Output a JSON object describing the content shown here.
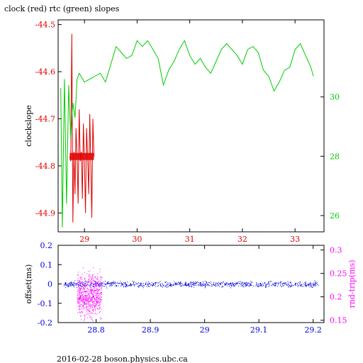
{
  "title": "clock (red) rtc (green) slopes",
  "footer": "2016-02-28 boson.physics.ubc.ca",
  "colors": {
    "red": "#e00000",
    "green": "#00cc00",
    "blue": "#0000dd",
    "magenta": "#ff00ff",
    "axis": "#000000"
  },
  "chart_data": [
    {
      "type": "line",
      "ylabel": "clockslope",
      "xlim": [
        28.5,
        33.55
      ],
      "ylim": [
        -44.94,
        -44.49
      ],
      "x_ticks": [
        "29",
        "30",
        "31",
        "32",
        "33"
      ],
      "y_ticks_left": [
        "-44.5",
        "-44.6",
        "-44.7",
        "-44.8",
        "-44.9"
      ],
      "y_ticks_right": [
        "30",
        "28",
        "26"
      ],
      "y2lim": [
        25.45,
        32.6
      ],
      "grid": false,
      "series": [
        {
          "axis": "left",
          "color": "red",
          "x": [
            28.72,
            28.74,
            28.76,
            28.78,
            28.8,
            28.82,
            28.84,
            28.86,
            28.88,
            28.9,
            28.92,
            28.94,
            28.96,
            28.98,
            29.0,
            29.02,
            29.04,
            29.06,
            29.08,
            29.1,
            29.12,
            29.14,
            29.16,
            29.18
          ],
          "y": [
            -44.78,
            -44.79,
            -44.52,
            -44.92,
            -44.77,
            -44.86,
            -44.72,
            -44.78,
            -44.88,
            -44.68,
            -44.79,
            -44.77,
            -44.87,
            -44.71,
            -44.79,
            -44.9,
            -44.72,
            -44.78,
            -44.86,
            -44.69,
            -44.79,
            -44.91,
            -44.7,
            -44.78
          ]
        },
        {
          "axis": "right",
          "color": "green",
          "x": [
            28.55,
            28.58,
            28.62,
            28.66,
            28.7,
            28.74,
            28.78,
            28.82,
            28.86,
            28.9,
            29.0,
            29.1,
            29.2,
            29.3,
            29.4,
            29.5,
            29.6,
            29.7,
            29.8,
            29.9,
            30.0,
            30.1,
            30.2,
            30.3,
            30.4,
            30.5,
            30.6,
            30.7,
            30.8,
            30.9,
            31.0,
            31.1,
            31.2,
            31.3,
            31.4,
            31.5,
            31.6,
            31.7,
            31.8,
            31.9,
            32.0,
            32.1,
            32.2,
            32.3,
            32.4,
            32.5,
            32.6,
            32.7,
            32.8,
            32.9,
            33.0,
            33.1,
            33.2,
            33.3,
            33.35
          ],
          "y": [
            30.3,
            25.6,
            30.6,
            26.4,
            30.4,
            28.6,
            29.8,
            29.3,
            30.6,
            30.8,
            30.5,
            30.6,
            30.7,
            30.8,
            30.5,
            31.1,
            31.7,
            31.5,
            31.3,
            31.4,
            31.9,
            31.7,
            31.9,
            31.6,
            31.3,
            30.4,
            30.9,
            31.2,
            31.6,
            31.9,
            31.4,
            31.1,
            31.3,
            31.0,
            30.8,
            31.2,
            31.6,
            31.8,
            31.6,
            31.4,
            31.1,
            31.6,
            31.7,
            31.5,
            30.9,
            30.7,
            30.2,
            30.5,
            30.9,
            31.0,
            31.6,
            31.8,
            31.4,
            31.0,
            30.7
          ]
        }
      ]
    },
    {
      "type": "scatter",
      "ylabel": "offset(ms)",
      "y2label": "rnd-trip(ms)",
      "xlim": [
        28.73,
        29.22
      ],
      "ylim": [
        -0.2,
        0.2
      ],
      "y2lim": [
        0.145,
        0.31
      ],
      "x_ticks": [
        "28.8",
        "28.9",
        "29",
        "29.1",
        "29.2"
      ],
      "y_ticks_left": [
        "0.2",
        "0.1",
        "0",
        "-0.1",
        "-0.2"
      ],
      "y_ticks_right": [
        "0.3",
        "0.25",
        "0.2",
        "0.15"
      ],
      "series": [
        {
          "name": "offset",
          "axis": "left",
          "color": "blue",
          "x_range": [
            28.74,
            29.21
          ],
          "y_center": 0.0,
          "y_spread": 0.015
        },
        {
          "name": "rnd-trip",
          "axis": "right",
          "color": "magenta",
          "x_range": [
            28.765,
            28.81
          ],
          "y_center": 0.205,
          "y_spread": 0.03
        }
      ]
    }
  ]
}
